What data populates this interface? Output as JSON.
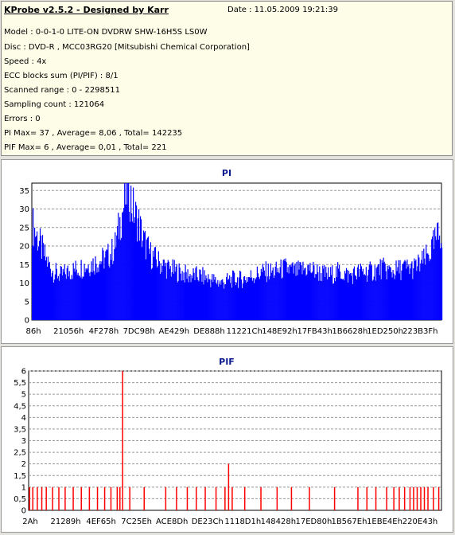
{
  "info": {
    "title": "KProbe v2.5.2 - Designed by Karr",
    "date": "Date : 11.05.2009 19:21:39",
    "lines": [
      "Model : 0-0-1-0 LITE-ON DVDRW SHW-16H5S  LS0W",
      "Disc : DVD-R , MCC03RG20 [Mitsubishi Chemical Corporation]",
      "Speed : 4x",
      "ECC blocks sum (PI/PIF) : 8/1",
      "Scanned range : 0 - 2298511",
      "Sampling count : 121064",
      "Errors : 0",
      "PI Max= 37 , Average= 8,06 , Total= 142235",
      "PIF Max= 6 , Average= 0,01 , Total= 221"
    ]
  },
  "colors": {
    "pi": "#0000ff",
    "pif": "#ff0000",
    "title": "#0b1a8e",
    "grid": "#9a9a9a"
  },
  "chart_data": [
    {
      "type": "area",
      "title": "PI",
      "x_range": [
        134,
        2298511
      ],
      "x_ticks": [
        "86h",
        "21056h",
        "4F278h",
        "7DC98h",
        "AE429h",
        "DE888h",
        "11221Ch",
        "148E92h",
        "17FB43h",
        "1B6628h",
        "1ED250h",
        "223B3Fh"
      ],
      "y_ticks": [
        "0",
        "5",
        "10",
        "15",
        "20",
        "25",
        "30",
        "35"
      ],
      "ylim": [
        0,
        37
      ],
      "grid": "horizontal dashed",
      "series": [
        {
          "x": [
            0,
            40000,
            80000,
            120000,
            160000,
            200000,
            260000,
            320000,
            380000,
            420000,
            460000,
            500000,
            520000,
            540000,
            560000,
            580000,
            600000,
            620000,
            660000,
            700000,
            760000,
            820000,
            880000,
            940000,
            1000000,
            1060000,
            1120000,
            1180000,
            1240000,
            1300000,
            1360000,
            1420000,
            1480000,
            1540000,
            1600000,
            1660000,
            1720000,
            1780000,
            1840000,
            1900000,
            1960000,
            2020000,
            2080000,
            2140000,
            2200000,
            2240000,
            2270000,
            2298511
          ],
          "y": [
            26,
            21,
            16,
            13,
            12,
            13,
            14,
            15,
            16,
            17,
            19,
            28,
            32,
            37,
            31,
            28,
            26,
            22,
            18,
            16,
            14,
            13,
            12,
            12,
            11,
            10,
            11,
            11,
            12,
            13,
            13,
            14,
            13,
            14,
            13,
            12,
            13,
            12,
            13,
            13,
            14,
            13,
            14,
            14,
            16,
            19,
            22,
            24
          ]
        }
      ]
    },
    {
      "type": "bar",
      "title": "PIF",
      "x_range": [
        42,
        2298511
      ],
      "x_ticks": [
        "2Ah",
        "21289h",
        "4EF65h",
        "7C25Eh",
        "ACE8Dh",
        "DE23Ch",
        "1118D1h",
        "148428h",
        "17ED80h",
        "1B567Eh",
        "1EBE4Eh",
        "220E43h"
      ],
      "y_ticks": [
        "0",
        "0,5",
        "1",
        "1,5",
        "2",
        "2,5",
        "3",
        "3,5",
        "4",
        "4,5",
        "5",
        "5,5",
        "6"
      ],
      "ylim": [
        0,
        6
      ],
      "grid": "horizontal dashed",
      "series": [
        {
          "x": [
            2000,
            20000,
            45000,
            70000,
            95000,
            130000,
            165000,
            200000,
            245000,
            290000,
            335000,
            380000,
            420000,
            455000,
            490000,
            505000,
            520000,
            560000,
            640000,
            760000,
            820000,
            880000,
            930000,
            980000,
            1040000,
            1090000,
            1110000,
            1130000,
            1200000,
            1290000,
            1380000,
            1460000,
            1560000,
            1700000,
            1830000,
            1880000,
            1930000,
            1990000,
            2030000,
            2060000,
            2090000,
            2120000,
            2140000,
            2160000,
            2180000,
            2200000,
            2220000,
            2250000,
            2280000
          ],
          "y": [
            1,
            1,
            1,
            1,
            1,
            1,
            1,
            1,
            1,
            1,
            1,
            1,
            1,
            1,
            1,
            1,
            6,
            1,
            1,
            1,
            1,
            1,
            1,
            1,
            1,
            1,
            2,
            1,
            1,
            1,
            1,
            1,
            1,
            1,
            1,
            1,
            1,
            1,
            1,
            1,
            1,
            1,
            1,
            1,
            1,
            1,
            1,
            1,
            1
          ]
        }
      ]
    }
  ]
}
